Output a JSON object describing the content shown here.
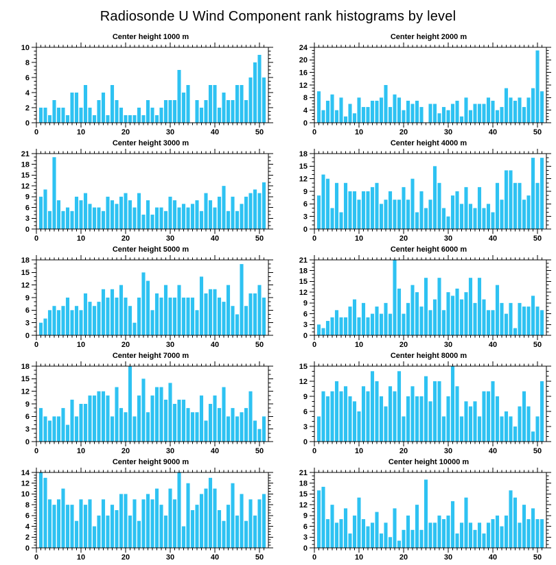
{
  "page_title": "Radiosonde U Wind Component rank histograms by level",
  "colors": {
    "bar": "#2EC2F2",
    "axis": "#000000",
    "background": "#FFFFFF"
  },
  "chart_data": [
    {
      "type": "bar",
      "title": "Center height 1000 m",
      "xlabel": "",
      "ylabel": "",
      "xlim": [
        0,
        52
      ],
      "xticks": [
        0,
        10,
        20,
        30,
        40,
        50
      ],
      "xminor": 1,
      "ylim": [
        0,
        10
      ],
      "ytick": 2,
      "yminor": 0.5,
      "values": [
        2,
        2,
        1,
        3,
        2,
        2,
        1,
        4,
        4,
        2,
        5,
        2,
        1,
        3,
        4,
        1,
        5,
        3,
        2,
        1,
        1,
        1,
        2,
        1,
        3,
        2,
        1,
        2,
        3,
        3,
        3,
        7,
        4,
        5,
        0,
        3,
        2,
        3,
        5,
        5,
        2,
        4,
        3,
        3,
        5,
        5,
        3,
        6,
        8,
        9,
        6
      ]
    },
    {
      "type": "bar",
      "title": "Center height 2000 m",
      "xlabel": "",
      "ylabel": "",
      "xlim": [
        0,
        52
      ],
      "xticks": [
        0,
        10,
        20,
        30,
        40,
        50
      ],
      "xminor": 1,
      "ylim": [
        0,
        24
      ],
      "ytick": 4,
      "yminor": 1,
      "values": [
        10,
        4,
        7,
        9,
        4,
        8,
        2,
        6,
        3,
        8,
        5,
        5,
        7,
        7,
        8,
        12,
        5,
        9,
        8,
        4,
        7,
        6,
        7,
        5,
        0,
        6,
        6,
        3,
        5,
        4,
        6,
        7,
        2,
        8,
        4,
        6,
        6,
        6,
        8,
        7,
        4,
        5,
        11,
        8,
        7,
        8,
        5,
        8,
        11,
        23,
        10
      ]
    },
    {
      "type": "bar",
      "title": "Center height 3000 m",
      "xlabel": "",
      "ylabel": "",
      "xlim": [
        0,
        52
      ],
      "xticks": [
        0,
        10,
        20,
        30,
        40,
        50
      ],
      "xminor": 1,
      "ylim": [
        0,
        21
      ],
      "ytick": 3,
      "yminor": 1,
      "values": [
        9,
        11,
        5,
        20,
        8,
        5,
        6,
        5,
        9,
        8,
        10,
        7,
        6,
        6,
        5,
        9,
        8,
        7,
        9,
        10,
        8,
        6,
        10,
        4,
        8,
        4,
        6,
        6,
        5,
        9,
        8,
        6,
        7,
        6,
        7,
        8,
        5,
        10,
        8,
        6,
        9,
        12,
        5,
        9,
        5,
        7,
        9,
        10,
        11,
        10,
        13
      ]
    },
    {
      "type": "bar",
      "title": "Center height 4000 m",
      "xlabel": "",
      "ylabel": "",
      "xlim": [
        0,
        52
      ],
      "xticks": [
        0,
        10,
        20,
        30,
        40,
        50
      ],
      "xminor": 1,
      "ylim": [
        0,
        18
      ],
      "ytick": 3,
      "yminor": 1,
      "values": [
        8,
        13,
        12,
        5,
        11,
        4,
        11,
        9,
        9,
        7,
        9,
        9,
        10,
        11,
        6,
        7,
        9,
        7,
        7,
        10,
        7,
        12,
        4,
        9,
        5,
        7,
        15,
        11,
        5,
        3,
        8,
        9,
        6,
        10,
        6,
        5,
        10,
        5,
        6,
        4,
        11,
        7,
        14,
        14,
        11,
        11,
        7,
        8,
        17,
        11,
        17
      ]
    },
    {
      "type": "bar",
      "title": "Center height 5000 m",
      "xlabel": "",
      "ylabel": "",
      "xlim": [
        0,
        52
      ],
      "xticks": [
        0,
        10,
        20,
        30,
        40,
        50
      ],
      "xminor": 1,
      "ylim": [
        0,
        18
      ],
      "ytick": 3,
      "yminor": 1,
      "values": [
        3,
        4,
        6,
        7,
        6,
        7,
        9,
        6,
        7,
        6,
        10,
        8,
        7,
        8,
        11,
        9,
        11,
        9,
        12,
        9,
        7,
        3,
        9,
        15,
        13,
        6,
        10,
        9,
        12,
        9,
        9,
        12,
        9,
        9,
        9,
        6,
        14,
        10,
        11,
        11,
        9,
        8,
        12,
        7,
        5,
        17,
        7,
        10,
        10,
        12,
        9
      ]
    },
    {
      "type": "bar",
      "title": "Center height 6000 m",
      "xlabel": "",
      "ylabel": "",
      "xlim": [
        0,
        52
      ],
      "xticks": [
        0,
        10,
        20,
        30,
        40,
        50
      ],
      "xminor": 1,
      "ylim": [
        0,
        21
      ],
      "ytick": 3,
      "yminor": 1,
      "values": [
        3,
        2,
        4,
        5,
        7,
        5,
        5,
        8,
        10,
        5,
        9,
        5,
        6,
        8,
        6,
        9,
        6,
        21,
        13,
        6,
        9,
        14,
        12,
        8,
        16,
        7,
        10,
        16,
        7,
        12,
        11,
        13,
        10,
        12,
        16,
        9,
        16,
        10,
        7,
        7,
        14,
        9,
        6,
        9,
        2,
        9,
        8,
        8,
        11,
        8,
        7
      ]
    },
    {
      "type": "bar",
      "title": "Center height 7000 m",
      "xlabel": "",
      "ylabel": "",
      "xlim": [
        0,
        52
      ],
      "xticks": [
        0,
        10,
        20,
        30,
        40,
        50
      ],
      "xminor": 1,
      "ylim": [
        0,
        18
      ],
      "ytick": 3,
      "yminor": 1,
      "values": [
        8,
        6,
        5,
        6,
        6,
        8,
        4,
        10,
        6,
        9,
        9,
        11,
        11,
        12,
        12,
        11,
        6,
        13,
        8,
        7,
        18,
        6,
        11,
        15,
        7,
        11,
        13,
        13,
        10,
        14,
        9,
        10,
        10,
        8,
        7,
        7,
        11,
        5,
        9,
        11,
        8,
        13,
        6,
        8,
        6,
        7,
        8,
        12,
        5,
        3,
        6
      ]
    },
    {
      "type": "bar",
      "title": "Center height 8000 m",
      "xlabel": "",
      "ylabel": "",
      "xlim": [
        0,
        52
      ],
      "xticks": [
        0,
        10,
        20,
        30,
        40,
        50
      ],
      "xminor": 1,
      "ylim": [
        0,
        15
      ],
      "ytick": 3,
      "yminor": 1,
      "values": [
        5,
        10,
        9,
        10,
        12,
        10,
        11,
        9,
        8,
        6,
        11,
        10,
        14,
        12,
        9,
        7,
        11,
        10,
        14,
        5,
        9,
        11,
        9,
        9,
        13,
        8,
        12,
        12,
        5,
        9,
        15,
        11,
        5,
        8,
        7,
        8,
        5,
        10,
        10,
        12,
        9,
        5,
        6,
        5,
        3,
        7,
        10,
        7,
        2,
        5,
        12
      ]
    },
    {
      "type": "bar",
      "title": "Center height 9000 m",
      "xlabel": "",
      "ylabel": "",
      "xlim": [
        0,
        52
      ],
      "xticks": [
        0,
        10,
        20,
        30,
        40,
        50
      ],
      "xminor": 1,
      "ylim": [
        0,
        14
      ],
      "ytick": 2,
      "yminor": 0.5,
      "values": [
        14,
        13,
        9,
        8,
        9,
        11,
        8,
        8,
        5,
        9,
        8,
        9,
        4,
        6,
        9,
        6,
        8,
        7,
        10,
        10,
        6,
        9,
        5,
        9,
        10,
        9,
        11,
        8,
        6,
        11,
        9,
        14,
        4,
        12,
        7,
        8,
        10,
        11,
        13,
        11,
        7,
        5,
        8,
        12,
        6,
        10,
        5,
        9,
        6,
        9,
        10
      ]
    },
    {
      "type": "bar",
      "title": "Center height 10000 m",
      "xlabel": "",
      "ylabel": "",
      "xlim": [
        0,
        52
      ],
      "xticks": [
        0,
        10,
        20,
        30,
        40,
        50
      ],
      "xminor": 1,
      "ylim": [
        0,
        21
      ],
      "ytick": 3,
      "yminor": 1,
      "values": [
        16,
        17,
        8,
        12,
        7,
        8,
        11,
        4,
        9,
        14,
        8,
        6,
        7,
        10,
        4,
        7,
        3,
        11,
        2,
        5,
        9,
        5,
        12,
        5,
        19,
        7,
        7,
        9,
        8,
        9,
        13,
        4,
        7,
        14,
        7,
        5,
        7,
        4,
        7,
        8,
        9,
        6,
        9,
        16,
        14,
        7,
        12,
        8,
        11,
        8,
        8
      ]
    }
  ]
}
